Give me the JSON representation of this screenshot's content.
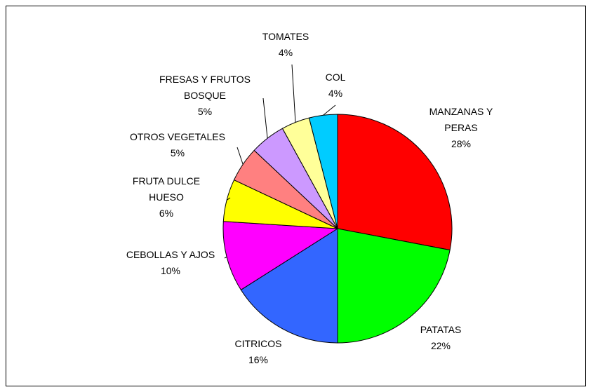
{
  "chart_data": {
    "type": "pie",
    "categories": [
      "MANZANAS Y PERAS",
      "PATATAS",
      "CITRICOS",
      "CEBOLLAS Y AJOS",
      "FRUTA DULCE HUESO",
      "OTROS VEGETALES",
      "FRESAS Y FRUTOS BOSQUE",
      "TOMATES",
      "COL"
    ],
    "values": [
      28,
      22,
      16,
      10,
      6,
      5,
      5,
      4,
      4
    ],
    "value_labels": [
      "28%",
      "22%",
      "16%",
      "10%",
      "6%",
      "5%",
      "5%",
      "4%",
      "4%"
    ],
    "colors": [
      "#ff0000",
      "#00ff00",
      "#3366ff",
      "#ff00ff",
      "#ffff00",
      "#ff8080",
      "#cc99ff",
      "#ffff99",
      "#00ccff"
    ]
  }
}
